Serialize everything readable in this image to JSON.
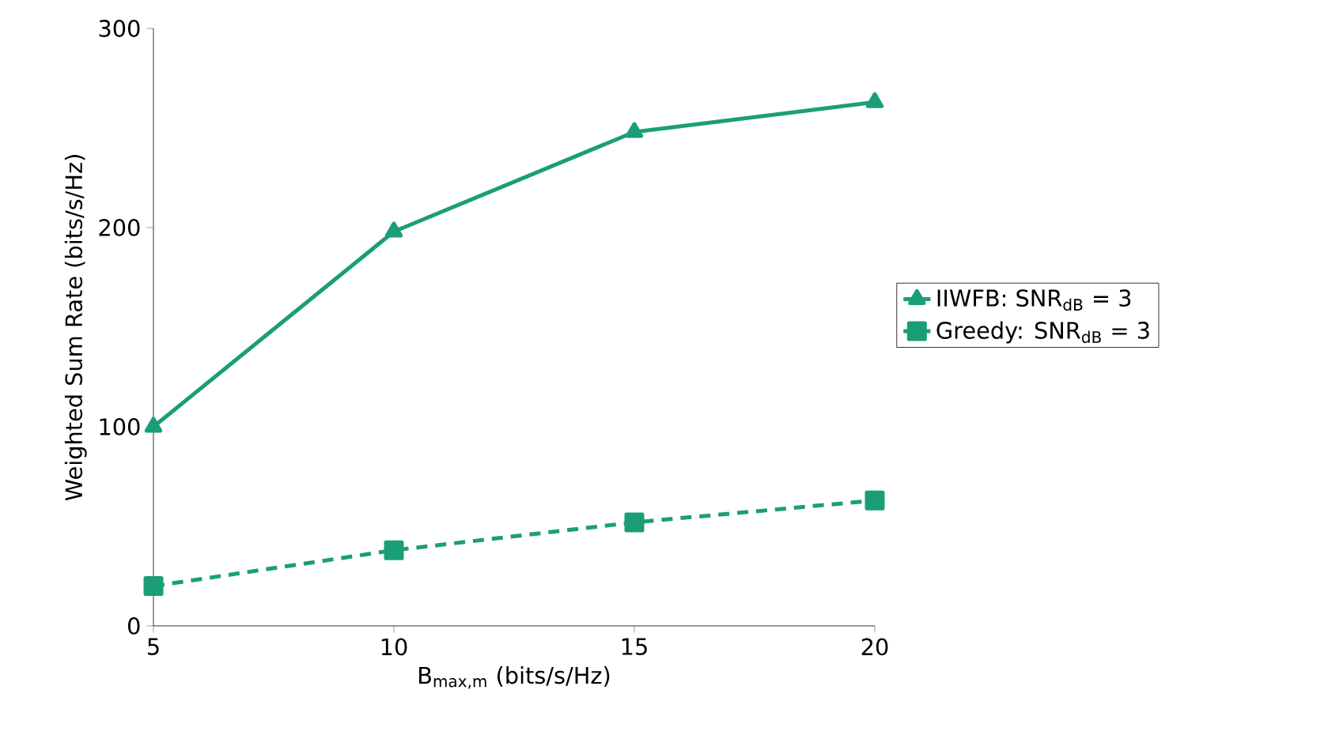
{
  "chart_data": {
    "type": "line",
    "xlabel": "B$_{max,m}$ (bits/s/Hz)",
    "ylabel": "Weighted Sum Rate (bits/s/Hz)",
    "x": [
      5,
      10,
      15,
      20
    ],
    "series": [
      {
        "name": "IIWFB: SNR$_{dB}$ = 3",
        "color": "#1b9e77",
        "values": [
          100,
          198,
          248,
          263
        ],
        "marker": "triangle",
        "line_style": "solid"
      },
      {
        "name": "Greedy: SNR$_{dB}$ = 3",
        "color": "#1b9e77",
        "values": [
          20,
          38,
          52,
          63
        ],
        "marker": "square",
        "line_style": "dashed"
      }
    ],
    "xlim": [
      5,
      20
    ],
    "ylim": [
      0,
      300
    ],
    "xticks": [
      5,
      10,
      15,
      20
    ],
    "yticks": [
      0,
      100,
      200,
      300
    ],
    "grid": false,
    "legend": "right"
  }
}
